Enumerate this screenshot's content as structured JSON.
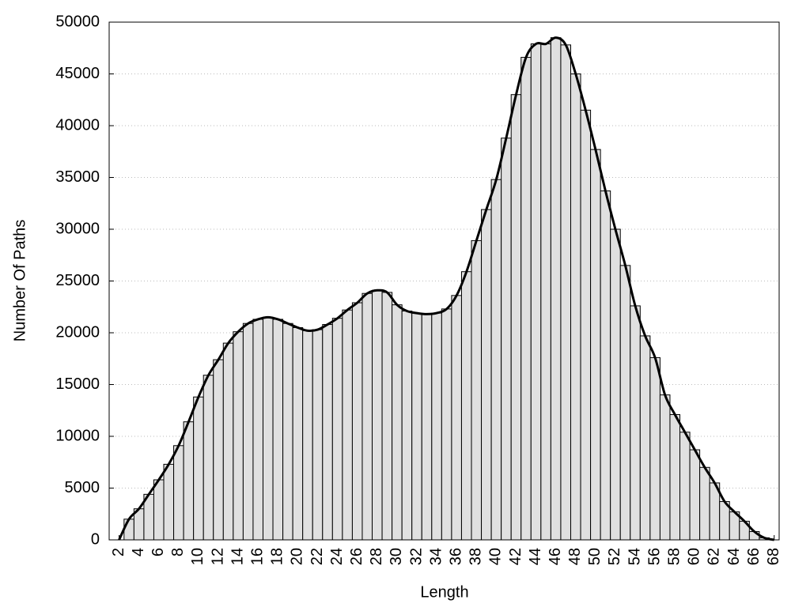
{
  "chart_data": {
    "type": "bar",
    "x_label": "Length",
    "y_label": "Number Of Paths",
    "x": [
      2,
      3,
      4,
      5,
      6,
      7,
      8,
      9,
      10,
      11,
      12,
      13,
      14,
      15,
      16,
      17,
      18,
      19,
      20,
      21,
      22,
      23,
      24,
      25,
      26,
      27,
      28,
      29,
      30,
      31,
      32,
      33,
      34,
      35,
      36,
      37,
      38,
      39,
      40,
      41,
      42,
      43,
      44,
      45,
      46,
      47,
      48,
      49,
      50,
      51,
      52,
      53,
      54,
      55,
      56,
      57,
      58,
      59,
      60,
      61,
      62,
      63,
      64,
      65,
      66,
      67,
      68
    ],
    "values": [
      0,
      2000,
      3000,
      4400,
      5800,
      7300,
      9100,
      11400,
      13800,
      15900,
      17400,
      19000,
      20100,
      20900,
      21300,
      21500,
      21300,
      20900,
      20500,
      20200,
      20300,
      20800,
      21400,
      22200,
      22900,
      23800,
      24100,
      23900,
      22700,
      22100,
      21900,
      21800,
      21900,
      22300,
      23600,
      25900,
      28900,
      31900,
      34800,
      38800,
      43000,
      46600,
      47900,
      47900,
      48500,
      47800,
      45000,
      41500,
      37700,
      33700,
      30000,
      26500,
      22600,
      19700,
      17600,
      14000,
      12100,
      10400,
      8700,
      7000,
      5500,
      3700,
      2700,
      1800,
      800,
      200,
      0
    ],
    "color": "#e0e0e0",
    "edge_color": "#000000",
    "smooth_line": true,
    "line_color": "#000000",
    "xlim": [
      1,
      68.5
    ],
    "xticks": [
      2,
      4,
      6,
      8,
      10,
      12,
      14,
      16,
      18,
      20,
      22,
      24,
      26,
      28,
      30,
      32,
      34,
      36,
      38,
      40,
      42,
      44,
      46,
      48,
      50,
      52,
      54,
      56,
      58,
      60,
      62,
      64,
      66,
      68
    ],
    "ylim": [
      0,
      50000
    ],
    "yticks": [
      0,
      5000,
      10000,
      15000,
      20000,
      25000,
      30000,
      35000,
      40000,
      45000,
      50000
    ],
    "grid": true
  }
}
